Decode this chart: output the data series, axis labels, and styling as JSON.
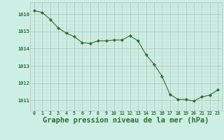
{
  "x": [
    0,
    1,
    2,
    3,
    4,
    5,
    6,
    7,
    8,
    9,
    10,
    11,
    12,
    13,
    14,
    15,
    16,
    17,
    18,
    19,
    20,
    21,
    22,
    23
  ],
  "y": [
    1016.2,
    1016.1,
    1015.7,
    1015.2,
    1014.9,
    1014.7,
    1014.35,
    1014.3,
    1014.45,
    1014.45,
    1014.5,
    1014.5,
    1014.75,
    1014.45,
    1013.65,
    1013.1,
    1012.4,
    1011.35,
    1011.05,
    1011.05,
    1010.95,
    1011.2,
    1011.3,
    1011.6
  ],
  "line_color": "#2d6e2d",
  "marker": "D",
  "marker_size": 2.2,
  "bg_color": "#cceee4",
  "grid_color_major": "#b0c8be",
  "grid_color_minor": "#c2ddd6",
  "title": "Graphe pression niveau de la mer (hPa)",
  "title_color": "#2d6e2d",
  "title_fontsize": 7.5,
  "ytick_labels": [
    "1011",
    "1012",
    "1013",
    "1014",
    "1015",
    "1016"
  ],
  "ylim": [
    1010.4,
    1016.7
  ],
  "xlim": [
    -0.5,
    23.5
  ],
  "yticks": [
    1011,
    1012,
    1013,
    1014,
    1015,
    1016
  ],
  "xticks": [
    0,
    1,
    2,
    3,
    4,
    5,
    6,
    7,
    8,
    9,
    10,
    11,
    12,
    13,
    14,
    15,
    16,
    17,
    18,
    19,
    20,
    21,
    22,
    23
  ]
}
